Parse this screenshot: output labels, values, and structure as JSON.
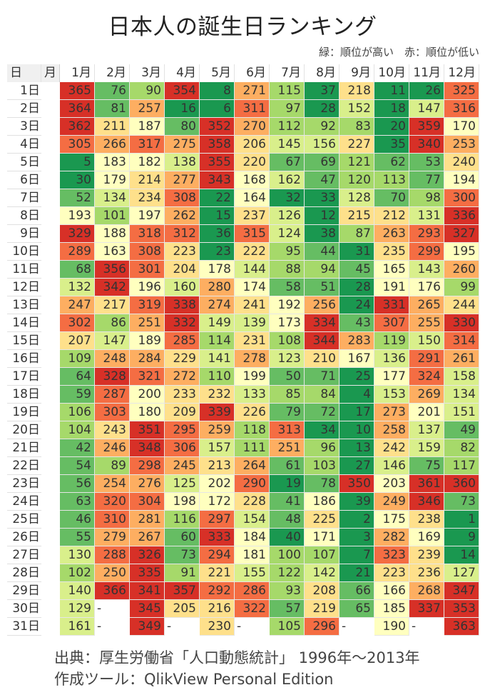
{
  "title": "日本人の誕生日ランキング",
  "legend": "緑：順位が高い　赤：順位が低い",
  "header": {
    "day_label": "日",
    "month_label": "月",
    "months": [
      "1月",
      "2月",
      "3月",
      "4月",
      "5月",
      "6月",
      "7月",
      "8月",
      "9月",
      "10月",
      "11月",
      "12月"
    ]
  },
  "days": [
    "1日",
    "2日",
    "3日",
    "4日",
    "5日",
    "6日",
    "7日",
    "8日",
    "9日",
    "10日",
    "11日",
    "12日",
    "13日",
    "14日",
    "15日",
    "16日",
    "17日",
    "18日",
    "19日",
    "20日",
    "21日",
    "22日",
    "23日",
    "24日",
    "25日",
    "26日",
    "27日",
    "28日",
    "29日",
    "30日",
    "31日"
  ],
  "color_scale": {
    "thresholds": [
      40,
      81,
      122,
      162,
      203,
      244,
      284,
      325,
      366
    ],
    "colors": [
      "#1a9850",
      "#66bd63",
      "#a6d96a",
      "#d9ef8b",
      "#ffffbf",
      "#fee08b",
      "#fdae61",
      "#f46d43",
      "#d73027"
    ]
  },
  "footer": {
    "source": "出典：厚生労働省「人口動態統計」 1996年～2013年",
    "tool": "作成ツール：QlikView Personal Edition"
  },
  "chart_data": {
    "type": "heatmap",
    "title": "日本人の誕生日ランキング",
    "subtitle": "緑：順位が高い　赤：順位が低い",
    "xlabel": "月",
    "ylabel": "日",
    "x": [
      "1月",
      "2月",
      "3月",
      "4月",
      "5月",
      "6月",
      "7月",
      "8月",
      "9月",
      "10月",
      "11月",
      "12月"
    ],
    "y": [
      "1日",
      "2日",
      "3日",
      "4日",
      "5日",
      "6日",
      "7日",
      "8日",
      "9日",
      "10日",
      "11日",
      "12日",
      "13日",
      "14日",
      "15日",
      "16日",
      "17日",
      "18日",
      "19日",
      "20日",
      "21日",
      "22日",
      "23日",
      "24日",
      "25日",
      "26日",
      "27日",
      "28日",
      "29日",
      "30日",
      "31日"
    ],
    "value_range": [
      1,
      366
    ],
    "values": [
      [
        365,
        76,
        90,
        354,
        8,
        271,
        115,
        37,
        218,
        11,
        26,
        325
      ],
      [
        364,
        81,
        257,
        16,
        6,
        311,
        97,
        28,
        152,
        18,
        147,
        316
      ],
      [
        362,
        211,
        187,
        80,
        352,
        270,
        112,
        92,
        83,
        20,
        359,
        170
      ],
      [
        305,
        266,
        317,
        275,
        358,
        206,
        145,
        156,
        227,
        35,
        340,
        253
      ],
      [
        5,
        183,
        182,
        138,
        355,
        220,
        67,
        69,
        121,
        62,
        53,
        240
      ],
      [
        30,
        179,
        214,
        277,
        343,
        168,
        162,
        47,
        120,
        113,
        77,
        194
      ],
      [
        52,
        134,
        234,
        308,
        22,
        164,
        32,
        33,
        128,
        70,
        98,
        300
      ],
      [
        193,
        101,
        197,
        262,
        15,
        237,
        126,
        12,
        215,
        212,
        131,
        336
      ],
      [
        329,
        188,
        318,
        312,
        36,
        315,
        124,
        38,
        87,
        263,
        293,
        327
      ],
      [
        289,
        163,
        308,
        223,
        23,
        222,
        95,
        44,
        31,
        235,
        299,
        195
      ],
      [
        68,
        356,
        301,
        204,
        178,
        144,
        88,
        94,
        45,
        165,
        143,
        260
      ],
      [
        132,
        342,
        196,
        160,
        280,
        174,
        58,
        51,
        28,
        191,
        176,
        99
      ],
      [
        247,
        217,
        319,
        338,
        274,
        241,
        192,
        256,
        24,
        331,
        265,
        244
      ],
      [
        302,
        86,
        251,
        332,
        149,
        139,
        173,
        334,
        43,
        307,
        255,
        330
      ],
      [
        207,
        147,
        189,
        285,
        114,
        231,
        108,
        344,
        283,
        119,
        150,
        314
      ],
      [
        109,
        248,
        284,
        229,
        141,
        278,
        123,
        210,
        167,
        136,
        291,
        261
      ],
      [
        64,
        328,
        321,
        272,
        110,
        199,
        50,
        71,
        25,
        177,
        324,
        158
      ],
      [
        59,
        287,
        200,
        233,
        232,
        133,
        85,
        84,
        4,
        153,
        269,
        134
      ],
      [
        106,
        303,
        180,
        209,
        339,
        226,
        79,
        72,
        17,
        273,
        201,
        151
      ],
      [
        104,
        243,
        351,
        295,
        259,
        118,
        313,
        34,
        10,
        258,
        137,
        49
      ],
      [
        42,
        246,
        348,
        306,
        157,
        111,
        251,
        96,
        13,
        242,
        159,
        82
      ],
      [
        54,
        89,
        298,
        245,
        213,
        264,
        61,
        103,
        27,
        146,
        75,
        117
      ],
      [
        56,
        254,
        276,
        125,
        202,
        290,
        19,
        78,
        350,
        203,
        361,
        360
      ],
      [
        63,
        320,
        304,
        198,
        172,
        228,
        41,
        186,
        39,
        249,
        346,
        73
      ],
      [
        46,
        310,
        281,
        116,
        297,
        154,
        48,
        225,
        2,
        175,
        238,
        1
      ],
      [
        55,
        279,
        267,
        60,
        333,
        184,
        40,
        171,
        3,
        282,
        169,
        9
      ],
      [
        130,
        288,
        326,
        73,
        294,
        181,
        100,
        107,
        7,
        323,
        239,
        14
      ],
      [
        102,
        250,
        335,
        91,
        221,
        155,
        122,
        142,
        21,
        223,
        236,
        127
      ],
      [
        140,
        366,
        341,
        357,
        292,
        286,
        93,
        208,
        66,
        166,
        268,
        347
      ],
      [
        129,
        "-",
        345,
        205,
        216,
        322,
        57,
        219,
        65,
        185,
        337,
        353
      ],
      [
        161,
        "-",
        349,
        "-",
        230,
        "-",
        105,
        296,
        "-",
        190,
        "-",
        363
      ]
    ],
    "legend": {
      "green": "順位が高い",
      "red": "順位が低い"
    },
    "grid": true
  }
}
